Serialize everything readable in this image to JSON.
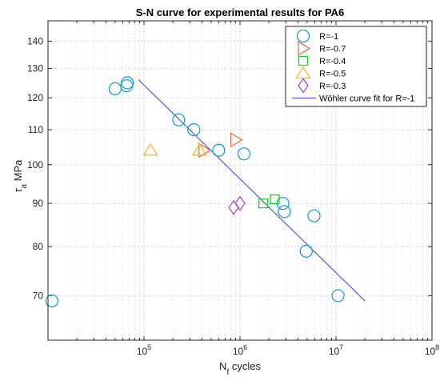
{
  "chart_data": {
    "type": "scatter",
    "title": "S-N curve for experimental results for PA6",
    "xlabel": {
      "main": "N",
      "sub": "f",
      "rest": " cycles"
    },
    "ylabel": {
      "main": "τ",
      "sub": "a",
      "rest": " MPa"
    },
    "x_scale": "log",
    "y_scale": "log",
    "xlim": [
      10000,
      100000000
    ],
    "ylim": [
      62,
      148
    ],
    "grid": true,
    "legend_position": "top-right",
    "x_ticks": [
      {
        "value": 100000,
        "base": "10",
        "exp": "5"
      },
      {
        "value": 1000000,
        "base": "10",
        "exp": "6"
      },
      {
        "value": 10000000,
        "base": "10",
        "exp": "7"
      },
      {
        "value": 100000000,
        "base": "10",
        "exp": "8"
      }
    ],
    "y_ticks": [
      70,
      80,
      90,
      100,
      110,
      120,
      130,
      140
    ],
    "series": [
      {
        "name": "R=-1",
        "marker": "circle",
        "color": "#1f9bcf",
        "points": [
          [
            50000,
            123
          ],
          [
            66000,
            124
          ],
          [
            67000,
            125
          ],
          [
            230000,
            113
          ],
          [
            330000,
            110
          ],
          [
            600000,
            104
          ],
          [
            1100000,
            103
          ],
          [
            2800000,
            90
          ],
          [
            2900000,
            88
          ],
          [
            4900000,
            79
          ],
          [
            5900000,
            87
          ],
          [
            10500000,
            70
          ],
          [
            11000,
            69
          ]
        ]
      },
      {
        "name": "R=-0.7",
        "marker": "triangle-right",
        "color": "#ee6a40",
        "points": [
          [
            420000,
            104
          ],
          [
            900000,
            107
          ]
        ]
      },
      {
        "name": "R=-0.4",
        "marker": "square",
        "color": "#22cc22",
        "points": [
          [
            1750000,
            90
          ],
          [
            2300000,
            91
          ]
        ]
      },
      {
        "name": "R=-0.5",
        "marker": "triangle-up",
        "color": "#f2b731",
        "points": [
          [
            117000,
            104
          ],
          [
            380000,
            104
          ]
        ]
      },
      {
        "name": "R=-0.3",
        "marker": "diamond",
        "color": "#a64ac9",
        "points": [
          [
            860000,
            89
          ],
          [
            1000000,
            90
          ]
        ]
      }
    ],
    "fit": {
      "name": "Wöhler curve fit for R=-1",
      "color": "#5555dd",
      "points": [
        [
          88000,
          126
        ],
        [
          20000000,
          69
        ]
      ]
    }
  }
}
